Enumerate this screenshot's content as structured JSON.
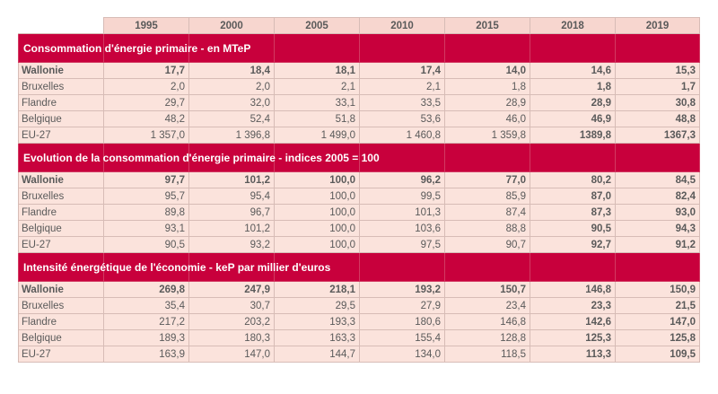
{
  "years": [
    "1995",
    "2000",
    "2005",
    "2010",
    "2015",
    "2018",
    "2019"
  ],
  "sections": [
    {
      "title": "Consommation d'énergie primaire - en MTeP",
      "rows": [
        {
          "label": "Wallonie",
          "values": [
            "17,7",
            "18,4",
            "18,1",
            "17,4",
            "14,0",
            "14,6",
            "15,3"
          ]
        },
        {
          "label": "Bruxelles",
          "values": [
            "2,0",
            "2,0",
            "2,1",
            "2,1",
            "1,8",
            "1,8",
            "1,7"
          ]
        },
        {
          "label": "Flandre",
          "values": [
            "29,7",
            "32,0",
            "33,1",
            "33,5",
            "28,9",
            "28,9",
            "30,8"
          ]
        },
        {
          "label": "Belgique",
          "values": [
            "48,2",
            "52,4",
            "51,8",
            "53,6",
            "46,0",
            "46,9",
            "48,8"
          ]
        },
        {
          "label": "EU-27",
          "values": [
            "1 357,0",
            "1 396,8",
            "1 499,0",
            "1 460,8",
            "1 359,8",
            "1389,8",
            "1367,3"
          ]
        }
      ]
    },
    {
      "title": "Evolution de la consommation d'énergie primaire - indices 2005 = 100",
      "rows": [
        {
          "label": "Wallonie",
          "values": [
            "97,7",
            "101,2",
            "100,0",
            "96,2",
            "77,0",
            "80,2",
            "84,5"
          ]
        },
        {
          "label": "Bruxelles",
          "values": [
            "95,7",
            "95,4",
            "100,0",
            "99,5",
            "85,9",
            "87,0",
            "82,4"
          ]
        },
        {
          "label": "Flandre",
          "values": [
            "89,8",
            "96,7",
            "100,0",
            "101,3",
            "87,4",
            "87,3",
            "93,0"
          ]
        },
        {
          "label": "Belgique",
          "values": [
            "93,1",
            "101,2",
            "100,0",
            "103,6",
            "88,8",
            "90,5",
            "94,3"
          ]
        },
        {
          "label": "EU-27",
          "values": [
            "90,5",
            "93,2",
            "100,0",
            "97,5",
            "90,7",
            "92,7",
            "91,2"
          ]
        }
      ]
    },
    {
      "title": "Intensité énergétique de l'économie - keP par millier d'euros",
      "rows": [
        {
          "label": "Wallonie",
          "values": [
            "269,8",
            "247,9",
            "218,1",
            "193,2",
            "150,7",
            "146,8",
            "150,9"
          ]
        },
        {
          "label": "Bruxelles",
          "values": [
            "35,4",
            "30,7",
            "29,5",
            "27,9",
            "23,4",
            "23,3",
            "21,5"
          ]
        },
        {
          "label": "Flandre",
          "values": [
            "217,2",
            "203,2",
            "193,3",
            "180,6",
            "146,8",
            "142,6",
            "147,0"
          ]
        },
        {
          "label": "Belgique",
          "values": [
            "189,3",
            "180,3",
            "163,3",
            "155,4",
            "128,8",
            "125,3",
            "125,8"
          ]
        },
        {
          "label": "EU-27",
          "values": [
            "163,9",
            "147,0",
            "144,7",
            "134,0",
            "118,5",
            "113,3",
            "109,5"
          ]
        }
      ]
    }
  ],
  "colors": {
    "section_band": "#c8003c",
    "row_fill": "#fbe3dc",
    "header_fill": "#f7d6cf",
    "grid_line": "#d7bcb6",
    "text": "#5a5a5a"
  }
}
